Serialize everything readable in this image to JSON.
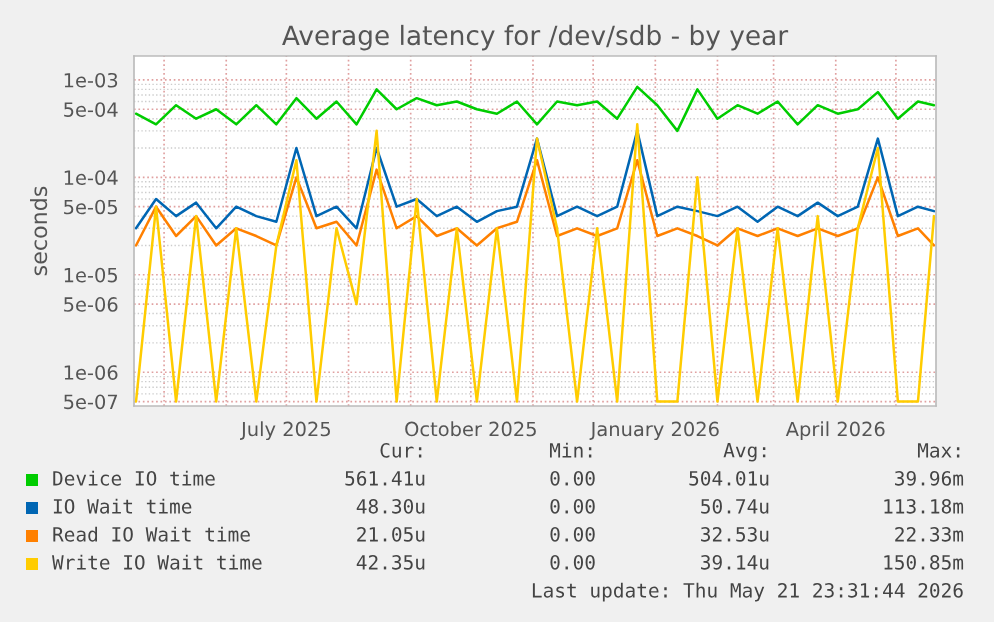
{
  "chart_data": {
    "type": "line",
    "title": "Average latency for /dev/sdb - by year",
    "ylabel": "seconds",
    "log": "y",
    "grid": true,
    "legend": "bottom",
    "x": [
      "2025-04-17",
      "2025-04-27",
      "2025-05-07",
      "2025-05-17",
      "2025-05-27",
      "2025-06-06",
      "2025-06-16",
      "2025-06-26",
      "2025-07-06",
      "2025-07-16",
      "2025-07-26",
      "2025-08-05",
      "2025-08-15",
      "2025-08-25",
      "2025-09-04",
      "2025-09-14",
      "2025-09-24",
      "2025-10-04",
      "2025-10-14",
      "2025-10-24",
      "2025-11-03",
      "2025-11-13",
      "2025-11-23",
      "2025-12-03",
      "2025-12-13",
      "2025-12-23",
      "2026-01-02",
      "2026-01-12",
      "2026-01-22",
      "2026-02-01",
      "2026-02-11",
      "2026-02-21",
      "2026-03-03",
      "2026-03-13",
      "2026-03-23",
      "2026-04-02",
      "2026-04-12",
      "2026-04-22",
      "2026-05-02",
      "2026-05-12",
      "2026-05-20"
    ],
    "xlim": [
      "2025-04-16",
      "2026-05-21"
    ],
    "xticks": [
      {
        "value": "2025-05-01",
        "label": null
      },
      {
        "value": "2025-06-01",
        "label": null
      },
      {
        "value": "2025-07-01",
        "label": "July 2025"
      },
      {
        "value": "2025-08-01",
        "label": null
      },
      {
        "value": "2025-09-01",
        "label": null
      },
      {
        "value": "2025-10-01",
        "label": "October 2025"
      },
      {
        "value": "2025-11-01",
        "label": null
      },
      {
        "value": "2025-12-01",
        "label": null
      },
      {
        "value": "2026-01-01",
        "label": "January 2026"
      },
      {
        "value": "2026-02-01",
        "label": null
      },
      {
        "value": "2026-03-01",
        "label": null
      },
      {
        "value": "2026-04-01",
        "label": "April 2026"
      },
      {
        "value": "2026-05-01",
        "label": null
      }
    ],
    "ylim": [
      4.5e-07,
      0.00176
    ],
    "yticks": [
      {
        "value": 0.001,
        "label": "1e-03"
      },
      {
        "value": 0.0005,
        "label": "5e-04"
      },
      {
        "value": 0.0001,
        "label": "1e-04"
      },
      {
        "value": 5e-05,
        "label": "5e-05"
      },
      {
        "value": 1e-05,
        "label": "1e-05"
      },
      {
        "value": 5e-06,
        "label": "5e-06"
      },
      {
        "value": 1e-06,
        "label": "1e-06"
      },
      {
        "value": 5e-07,
        "label": "5e-07"
      }
    ],
    "series": [
      {
        "name": "Device IO time",
        "color": "#00cc00",
        "values": [
          0.00045,
          0.00035,
          0.00055,
          0.0004,
          0.0005,
          0.00035,
          0.00055,
          0.00035,
          0.00065,
          0.0004,
          0.0006,
          0.00035,
          0.0008,
          0.0005,
          0.00065,
          0.00055,
          0.0006,
          0.0005,
          0.00045,
          0.0006,
          0.00035,
          0.0006,
          0.00055,
          0.0006,
          0.0004,
          0.00085,
          0.00055,
          0.0003,
          0.0008,
          0.0004,
          0.00055,
          0.00045,
          0.0006,
          0.00035,
          0.00055,
          0.00045,
          0.0005,
          0.00075,
          0.0004,
          0.0006,
          0.00055
        ]
      },
      {
        "name": "IO Wait time",
        "color": "#0066b3",
        "values": [
          3e-05,
          6e-05,
          4e-05,
          5.5e-05,
          3e-05,
          5e-05,
          4e-05,
          3.5e-05,
          0.0002,
          4e-05,
          5e-05,
          3e-05,
          0.0002,
          5e-05,
          6e-05,
          4e-05,
          5e-05,
          3.5e-05,
          4.5e-05,
          5e-05,
          0.00025,
          4e-05,
          5e-05,
          4e-05,
          5e-05,
          0.0003,
          4e-05,
          5e-05,
          4.5e-05,
          4e-05,
          5e-05,
          3.5e-05,
          5e-05,
          4e-05,
          5.5e-05,
          4e-05,
          5e-05,
          0.00025,
          4e-05,
          5e-05,
          4.5e-05
        ]
      },
      {
        "name": "Read IO Wait time",
        "color": "#ff8000",
        "values": [
          2e-05,
          5e-05,
          2.5e-05,
          4e-05,
          2e-05,
          3e-05,
          2.5e-05,
          2e-05,
          0.0001,
          3e-05,
          3.5e-05,
          2e-05,
          0.00012,
          3e-05,
          4e-05,
          2.5e-05,
          3e-05,
          2e-05,
          3e-05,
          3.5e-05,
          0.00015,
          2.5e-05,
          3e-05,
          2.5e-05,
          3e-05,
          0.00015,
          2.5e-05,
          3e-05,
          2.5e-05,
          2e-05,
          3e-05,
          2.5e-05,
          3e-05,
          2.5e-05,
          3e-05,
          2.5e-05,
          3e-05,
          0.0001,
          2.5e-05,
          3e-05,
          2e-05
        ]
      },
      {
        "name": "Write IO Wait time",
        "color": "#ffcc00",
        "values": [
          5e-07,
          5e-05,
          5e-07,
          4e-05,
          5e-07,
          3e-05,
          5e-07,
          2e-05,
          0.00015,
          5e-07,
          3e-05,
          5e-06,
          0.0003,
          5e-07,
          6e-05,
          5e-07,
          3e-05,
          5e-07,
          3e-05,
          5e-07,
          0.00025,
          3e-05,
          5e-07,
          3e-05,
          5e-07,
          0.00035,
          5e-07,
          5e-07,
          0.0001,
          5e-07,
          3e-05,
          5e-07,
          3e-05,
          5e-07,
          4e-05,
          5e-07,
          3e-05,
          0.0002,
          5e-07,
          5e-07,
          4e-05
        ]
      }
    ],
    "annotations": [
      "Cur:",
      "Min:",
      "Avg:",
      "Max:",
      "561.41u",
      "0.00",
      "504.01u",
      "39.96m",
      "48.30u",
      "0.00",
      "50.74u",
      "113.18m",
      "21.05u",
      "0.00",
      "32.53u",
      "22.33m",
      "42.35u",
      "0.00",
      "39.14u",
      "150.85m",
      "Last update: Thu May 21 23:31:44 2026"
    ]
  }
}
